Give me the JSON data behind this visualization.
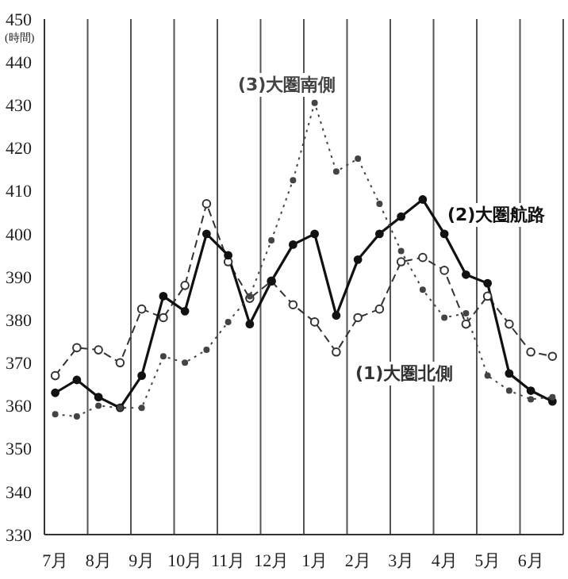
{
  "chart_data": {
    "type": "line",
    "ylabel": "(時間)",
    "categories": [
      "7月",
      null,
      "8月",
      null,
      "9月",
      null,
      "10月",
      null,
      "11月",
      null,
      "12月",
      null,
      "1月",
      null,
      "2月",
      null,
      "3月",
      null,
      "4月",
      null,
      "5月",
      null,
      "6月",
      null
    ],
    "ylim": [
      330,
      450
    ],
    "yticks": [
      330,
      340,
      350,
      360,
      370,
      380,
      390,
      400,
      410,
      420,
      430,
      440,
      450
    ],
    "grid": "x",
    "series": [
      {
        "name": "(1)大圏北側",
        "color": "#333333",
        "line_style": "dashed",
        "marker": "circle",
        "values": [
          367,
          373.5,
          373,
          370,
          382.5,
          380.5,
          388,
          407,
          393.5,
          385,
          389,
          383.5,
          379.5,
          372.5,
          380.5,
          382.5,
          393.5,
          394.5,
          391.5,
          379,
          385.5,
          379,
          372.5,
          371.5
        ]
      },
      {
        "name": "(2)大圏航路",
        "color": "#111111",
        "line_style": "solid",
        "marker": "circle",
        "values": [
          363,
          366,
          362,
          359.5,
          367,
          385.5,
          382,
          400,
          395,
          379,
          389,
          397.5,
          400,
          381,
          394,
          400,
          404,
          408,
          400,
          390.5,
          388.5,
          367.5,
          363.5,
          361
        ]
      },
      {
        "name": "(3)大圏南側",
        "color": "#444444",
        "line_style": "dotted",
        "marker": "circle",
        "values": [
          358,
          357.5,
          360,
          359.5,
          359.5,
          371.5,
          370,
          373,
          379.5,
          385.5,
          398.5,
          412.5,
          430.5,
          414.5,
          417.5,
          407,
          396,
          387,
          380.5,
          381.5,
          367,
          363.5,
          361.5,
          362
        ]
      }
    ]
  }
}
